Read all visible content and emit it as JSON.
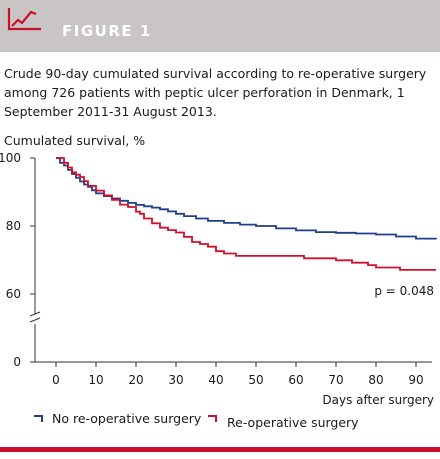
{
  "figure": {
    "label": "FIGURE 1",
    "caption": "Crude 90-day cumulated survival according to re-operative surgery among 726 patients with peptic ulcer perforation in Denmark, 1 September 2011-31 August 2013."
  },
  "colors": {
    "accent": "#c8102e",
    "banner": "#c8c5c4",
    "series_blue": "#1f3f8a",
    "series_red": "#d0102c"
  },
  "chart_data": {
    "type": "line",
    "title": "",
    "ylabel": "Cumulated survival, %",
    "xlabel": "Days after surgery",
    "xlim": [
      0,
      95
    ],
    "ylim": [
      0,
      100
    ],
    "axis_break": [
      0,
      60
    ],
    "x_ticks": [
      "0",
      "10",
      "20",
      "30",
      "40",
      "50",
      "60",
      "70",
      "80",
      "90"
    ],
    "y_ticks": [
      "0",
      "60",
      "80",
      "100"
    ],
    "annotation": "p = 0.048",
    "legend_position": "bottom",
    "series": [
      {
        "name": "No re-operative surgery",
        "color": "#1f3f8a",
        "x": [
          0,
          1,
          2,
          3,
          4,
          5,
          6,
          7,
          8,
          9,
          10,
          12,
          14,
          16,
          18,
          20,
          22,
          24,
          26,
          28,
          30,
          32,
          35,
          38,
          42,
          46,
          50,
          55,
          60,
          65,
          70,
          75,
          80,
          85,
          90,
          95
        ],
        "y": [
          100,
          98.6,
          97.8,
          96.5,
          95.3,
          94.2,
          93.1,
          92.2,
          91.5,
          90.5,
          89.6,
          88.8,
          88.1,
          87.4,
          86.8,
          86.2,
          85.8,
          85.4,
          84.9,
          84.3,
          83.6,
          82.9,
          82.2,
          81.5,
          80.9,
          80.4,
          80.0,
          79.3,
          78.7,
          78.2,
          78.0,
          77.8,
          77.5,
          76.9,
          76.3,
          76.1
        ]
      },
      {
        "name": "Re-operative surgery",
        "color": "#d0102c",
        "x": [
          0,
          2,
          3,
          4,
          5,
          6,
          7,
          8,
          10,
          12,
          14,
          16,
          18,
          20,
          21,
          22,
          24,
          26,
          28,
          30,
          32,
          34,
          36,
          38,
          40,
          42,
          45,
          48,
          52,
          56,
          60,
          62,
          66,
          70,
          74,
          78,
          80,
          82,
          86,
          90,
          95
        ],
        "y": [
          100,
          98.6,
          97.2,
          95.8,
          95.1,
          94.4,
          93.2,
          91.8,
          90.4,
          89.0,
          87.7,
          86.3,
          85.6,
          84.2,
          83.6,
          82.2,
          80.8,
          79.5,
          78.8,
          78.1,
          76.8,
          75.3,
          74.7,
          73.9,
          72.6,
          71.9,
          71.2,
          71.2,
          71.2,
          71.2,
          71.2,
          70.5,
          70.5,
          69.9,
          69.2,
          68.5,
          67.8,
          67.8,
          67.1,
          67.1,
          67.1
        ]
      }
    ]
  }
}
